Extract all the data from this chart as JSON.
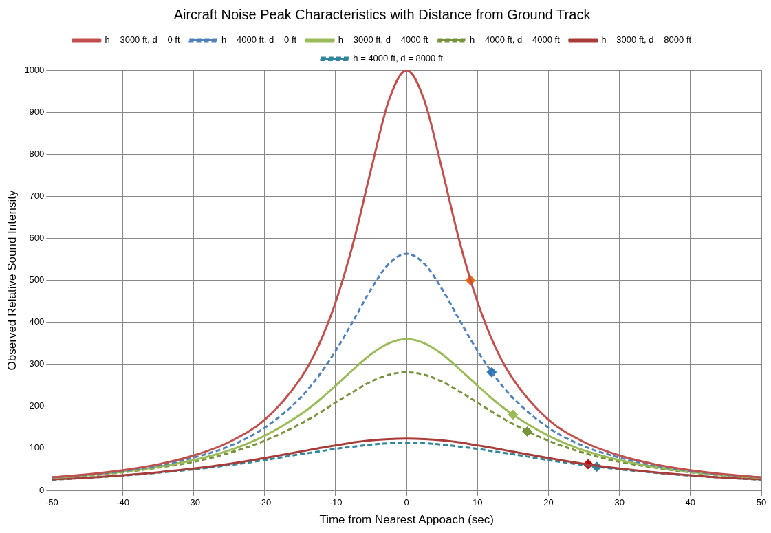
{
  "chart_data": {
    "type": "line",
    "title": "Aircraft Noise Peak Characteristics with Distance from Ground Track",
    "xlabel": "Time from Nearest Appoach (sec)",
    "ylabel": "Observed Relative Sound Intensity",
    "xlim": [
      -50,
      50
    ],
    "xticks": [
      -50,
      -40,
      -30,
      -20,
      -10,
      0,
      10,
      20,
      30,
      40,
      50
    ],
    "ylim": [
      0,
      1000
    ],
    "yticks": [
      0,
      100,
      200,
      300,
      400,
      500,
      600,
      700,
      800,
      900,
      1000
    ],
    "grid": true,
    "legend": "top",
    "marker": "none",
    "x": [
      -50,
      -45,
      -40,
      -35,
      -30,
      -25,
      -20,
      -15,
      -12.5,
      -10,
      -7.5,
      -5,
      -2.5,
      0,
      2.5,
      5,
      7.5,
      10,
      12.5,
      15,
      20,
      25,
      30,
      35,
      40,
      45,
      50
    ],
    "series": [
      {
        "name": "h = 3000 ft, d = 0 ft",
        "color": "#c0504d",
        "line_style": "solid",
        "values": [
          31,
          38,
          48,
          62,
          83,
          115,
          168,
          265,
          341,
          448,
          590,
          764,
          928,
          1000,
          928,
          764,
          590,
          448,
          341,
          265,
          168,
          115,
          83,
          62,
          48,
          38,
          31
        ]
      },
      {
        "name": "h = 4000 ft, d = 0 ft",
        "color": "#4f81bd",
        "line_style": "dashed",
        "values": [
          31,
          37,
          46,
          59,
          78,
          105,
          149,
          220,
          270,
          332,
          404,
          479,
          539,
          563,
          539,
          479,
          404,
          332,
          270,
          220,
          149,
          105,
          78,
          59,
          46,
          37,
          31
        ]
      },
      {
        "name": "h = 3000 ft, d = 4000 ft",
        "color": "#9bbb59",
        "line_style": "solid",
        "values": [
          30,
          36,
          44,
          56,
          72,
          95,
          130,
          180,
          212,
          249,
          288,
          324,
          350,
          360,
          350,
          324,
          288,
          249,
          212,
          180,
          130,
          95,
          72,
          56,
          44,
          36,
          30
        ]
      },
      {
        "name": "h = 4000 ft, d = 4000 ft",
        "color": "#77933c",
        "line_style": "dashed",
        "values": [
          29,
          35,
          43,
          54,
          68,
          89,
          118,
          158,
          182,
          209,
          235,
          259,
          275,
          281,
          275,
          259,
          235,
          209,
          182,
          158,
          118,
          89,
          68,
          54,
          43,
          35,
          29
        ]
      },
      {
        "name": "h = 3000 ft, d = 8000 ft",
        "color": "#a83c38",
        "line_style": "solid",
        "values": [
          26,
          30,
          36,
          43,
          52,
          63,
          77,
          92,
          100,
          107,
          114,
          119,
          122,
          123,
          122,
          119,
          114,
          107,
          100,
          92,
          77,
          63,
          52,
          43,
          36,
          30,
          26
        ]
      },
      {
        "name": "h = 4000 ft, d = 8000 ft",
        "color": "#31859c",
        "line_style": "dashed",
        "values": [
          25,
          30,
          35,
          42,
          50,
          60,
          72,
          86,
          92,
          99,
          104,
          109,
          112,
          113,
          112,
          109,
          104,
          99,
          92,
          86,
          72,
          60,
          50,
          42,
          35,
          30,
          25
        ]
      },
      {
        "type": "scatter",
        "marker": "diamond",
        "color": "#e46c0a",
        "x": [
          9
        ],
        "values": [
          500
        ]
      },
      {
        "type": "scatter",
        "marker": "diamond",
        "color": "#2e75b6",
        "x": [
          12
        ],
        "values": [
          281
        ]
      },
      {
        "type": "scatter",
        "marker": "diamond",
        "color": "#9bbb59",
        "x": [
          15
        ],
        "values": [
          180
        ]
      },
      {
        "type": "scatter",
        "marker": "diamond",
        "color": "#77933c",
        "x": [
          17
        ],
        "values": [
          140
        ]
      },
      {
        "type": "scatter",
        "marker": "diamond",
        "color": "#c00000",
        "x": [
          25.6
        ],
        "values": [
          62
        ]
      },
      {
        "type": "scatter",
        "marker": "diamond",
        "color": "#31859c",
        "x": [
          26.8
        ],
        "values": [
          56
        ]
      }
    ]
  }
}
